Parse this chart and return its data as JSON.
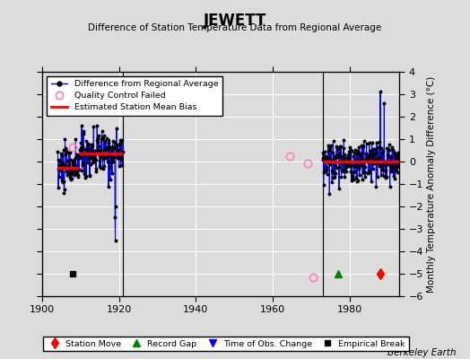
{
  "title": "JEWETT",
  "subtitle": "Difference of Station Temperature Data from Regional Average",
  "ylabel": "Monthly Temperature Anomaly Difference (°C)",
  "xlabel_credit": "Berkeley Earth",
  "xlim": [
    1900,
    1993
  ],
  "ylim": [
    -6,
    4
  ],
  "yticks": [
    -6,
    -5,
    -4,
    -3,
    -2,
    -1,
    0,
    1,
    2,
    3,
    4
  ],
  "xticks": [
    1900,
    1920,
    1940,
    1960,
    1980
  ],
  "background_color": "#dcdcdc",
  "plot_bg_color": "#dcdcdc",
  "seg1_years": [
    1904,
    1921
  ],
  "seg1_bias_breaks": [
    1909.5
  ],
  "seg1_bias_vals": [
    -0.3,
    0.35
  ],
  "seg2_years": [
    1973,
    1993
  ],
  "seg2_bias_val": 0.0,
  "station_move_x": 1988,
  "record_gap_x": 1977,
  "empirical_break_x": 1908,
  "qc_fail_points": [
    [
      1908.0,
      0.65
    ],
    [
      1964.5,
      0.22
    ],
    [
      1969.0,
      -0.08
    ],
    [
      1970.5,
      -5.15
    ]
  ],
  "spike1_x": 1919,
  "spike1_y": -3.5,
  "spike2_x": 1988,
  "spike2_y": 3.1,
  "spike2b_x": 1989,
  "spike2b_y": 2.6,
  "event_y": -5.0,
  "seed1": 10,
  "seed2": 20
}
